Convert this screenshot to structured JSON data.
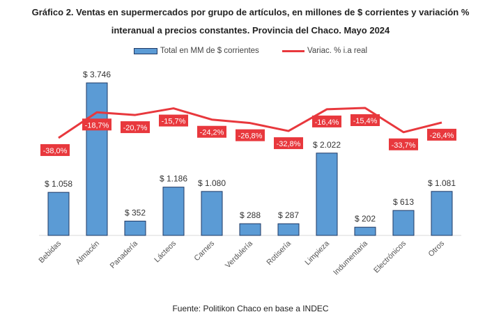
{
  "title_line1": "Gráfico 2. Ventas en supermercados por grupo de artículos, en millones de $ corrientes y variación %",
  "title_line2": "interanual a precios constantes. Provincia del Chaco. Mayo 2024",
  "source": "Fuente: Politikon Chaco en base a INDEC",
  "colors": {
    "bar": "#5b9bd5",
    "bar_border": "#1f3864",
    "line": "#e8383d"
  },
  "chart_data": {
    "type": "bar+line",
    "categories": [
      "Bebidas",
      "Almacén",
      "Panadería",
      "Lácteos",
      "Carnes",
      "Verdulería",
      "Rotisería",
      "Limpieza",
      "Indumentaria",
      "Electrónicos",
      "Otros"
    ],
    "series": [
      {
        "name": "Total en MM de $ corrientes",
        "type": "bar",
        "values": [
          1058,
          3746,
          352,
          1186,
          1080,
          288,
          287,
          2022,
          202,
          613,
          1081
        ],
        "labels": [
          "$ 1.058",
          "$ 3.746",
          "$ 352",
          "$ 1.186",
          "$ 1.080",
          "$ 288",
          "$ 287",
          "$ 2.022",
          "$ 202",
          "$ 613",
          "$ 1.081"
        ]
      },
      {
        "name": "Variac. % i.a real",
        "type": "line",
        "values": [
          -38.0,
          -18.7,
          -20.7,
          -15.7,
          -24.2,
          -26.8,
          -32.8,
          -16.4,
          -15.4,
          -33.7,
          -26.4
        ],
        "labels": [
          "-38,0%",
          "-18,7%",
          "-20,7%",
          "-15,7%",
          "-24,2%",
          "-26,8%",
          "-32,8%",
          "-16,4%",
          "-15,4%",
          "-33,7%",
          "-26,4%"
        ]
      }
    ],
    "grid": false,
    "legend": "top"
  }
}
